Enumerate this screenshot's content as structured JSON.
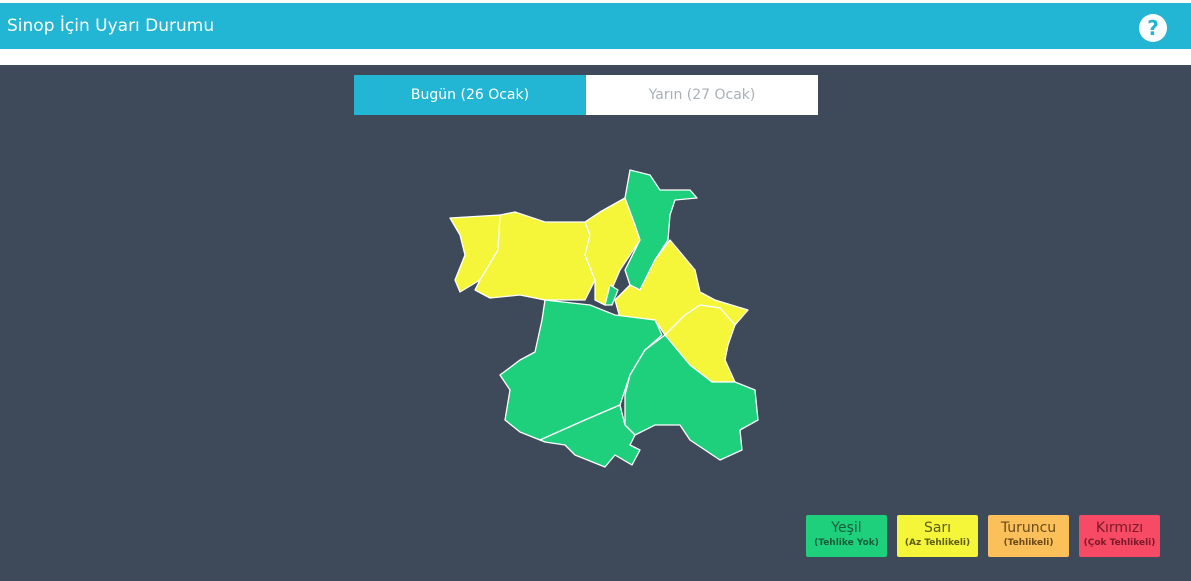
{
  "header": {
    "title": "Sinop İçin Uyarı Durumu",
    "help_icon": "question-circle-icon"
  },
  "tabs": [
    {
      "label": "Bugün (26 Ocak)",
      "active": true
    },
    {
      "label": "Yarın (27 Ocak)",
      "active": false
    }
  ],
  "colors": {
    "green": "#1ecf7c",
    "yellow": "#f5f53a",
    "orange": "#fbc05a",
    "red": "#f74a64",
    "accent": "#22b5d4",
    "background": "#3e4a59"
  },
  "map": {
    "districts": [
      {
        "level": "yellow"
      },
      {
        "level": "yellow"
      },
      {
        "level": "yellow"
      },
      {
        "level": "green"
      },
      {
        "level": "green"
      },
      {
        "level": "yellow"
      },
      {
        "level": "yellow"
      },
      {
        "level": "green"
      },
      {
        "level": "green"
      },
      {
        "level": "green"
      }
    ]
  },
  "legend": [
    {
      "name": "Yeşil",
      "desc": "(Tehlike Yok)",
      "bg": "#1ecf7c",
      "fg": "#1a5c3a"
    },
    {
      "name": "Sarı",
      "desc": "(Az Tehlikeli)",
      "bg": "#f5f53a",
      "fg": "#5c5c1a"
    },
    {
      "name": "Turuncu",
      "desc": "(Tehlikeli)",
      "bg": "#fbc05a",
      "fg": "#6a4a1a"
    },
    {
      "name": "Kırmızı",
      "desc": "(Çok Tehlikeli)",
      "bg": "#f74a64",
      "fg": "#7a1a2a"
    }
  ]
}
